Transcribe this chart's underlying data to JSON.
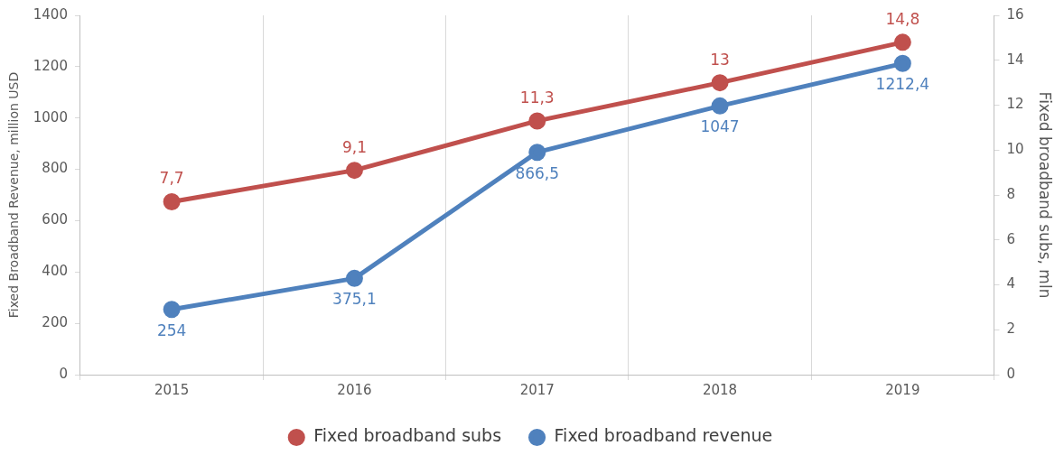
{
  "chart_data": {
    "type": "line",
    "ylabel": "Fixed Broadband Revenue, million USD",
    "y2label": "Fixed broadband subs, mln",
    "categories": [
      "2015",
      "2016",
      "2017",
      "2018",
      "2019"
    ],
    "series": [
      {
        "name": "Fixed broadband subs",
        "color": "#c0504d",
        "axis": "y2",
        "values": [
          7.7,
          9.1,
          11.3,
          13,
          14.8
        ],
        "value_labels": [
          "7,7",
          "9,1",
          "11,3",
          "13",
          "14,8"
        ]
      },
      {
        "name": "Fixed broadband revenue",
        "color": "#4f81bd",
        "axis": "y",
        "values": [
          254,
          375.1,
          866.5,
          1047,
          1212.4
        ],
        "value_labels": [
          "254",
          "375,1",
          "866,5",
          "1047",
          "1212,4"
        ]
      }
    ],
    "ylim": [
      0,
      1400
    ],
    "yticks": [
      0,
      200,
      400,
      600,
      800,
      1000,
      1200,
      1400
    ],
    "y2lim": [
      0,
      16
    ],
    "y2ticks": [
      0,
      2,
      4,
      6,
      8,
      10,
      12,
      14,
      16
    ],
    "grid": "x",
    "legend": "bottom",
    "marker": "circle",
    "line_style": "solid"
  }
}
